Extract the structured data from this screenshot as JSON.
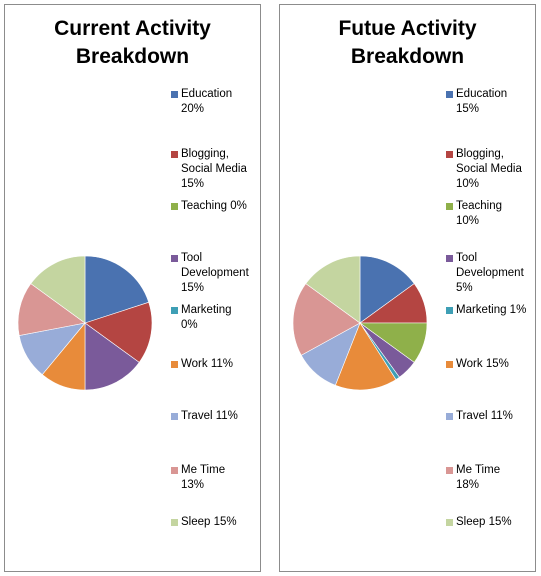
{
  "colors": {
    "education": "#4a72b0",
    "blogging": "#b44542",
    "teaching": "#8fb04a",
    "tool_dev": "#7a5a9a",
    "marketing": "#3e9fb5",
    "work": "#e88b3a",
    "travel": "#98acd8",
    "me_time": "#d99694",
    "sleep": "#c4d5a0"
  },
  "chart_data": [
    {
      "type": "pie",
      "title_lines": [
        "Current Activity",
        "Breakdown"
      ],
      "slices": [
        {
          "key": "education",
          "legend_lines": [
            "Education",
            "20%"
          ],
          "value": 20
        },
        {
          "key": "blogging",
          "legend_lines": [
            "Blogging,",
            "Social Media",
            "15%"
          ],
          "value": 15
        },
        {
          "key": "teaching",
          "legend_lines": [
            "Teaching  0%"
          ],
          "value": 0
        },
        {
          "key": "tool_dev",
          "legend_lines": [
            "Tool",
            "Development",
            "15%"
          ],
          "value": 15
        },
        {
          "key": "marketing",
          "legend_lines": [
            "Marketing",
            "0%"
          ],
          "value": 0
        },
        {
          "key": "work",
          "legend_lines": [
            "Work 11%"
          ],
          "value": 11
        },
        {
          "key": "travel",
          "legend_lines": [
            "Travel 11%"
          ],
          "value": 11
        },
        {
          "key": "me_time",
          "legend_lines": [
            "Me Time",
            "13%"
          ],
          "value": 13
        },
        {
          "key": "sleep",
          "legend_lines": [
            "Sleep  15%"
          ],
          "value": 15
        }
      ]
    },
    {
      "type": "pie",
      "title_lines": [
        "Futue Activity",
        "Breakdown"
      ],
      "slices": [
        {
          "key": "education",
          "legend_lines": [
            "Education",
            "15%"
          ],
          "value": 15
        },
        {
          "key": "blogging",
          "legend_lines": [
            "Blogging,",
            "Social Media",
            "10%"
          ],
          "value": 10
        },
        {
          "key": "teaching",
          "legend_lines": [
            "Teaching",
            "10%"
          ],
          "value": 10
        },
        {
          "key": "tool_dev",
          "legend_lines": [
            "Tool",
            "Development",
            "5%"
          ],
          "value": 5
        },
        {
          "key": "marketing",
          "legend_lines": [
            "Marketing 1%"
          ],
          "value": 1
        },
        {
          "key": "work",
          "legend_lines": [
            "Work  15%"
          ],
          "value": 15
        },
        {
          "key": "travel",
          "legend_lines": [
            "Travel 11%"
          ],
          "value": 11
        },
        {
          "key": "me_time",
          "legend_lines": [
            "Me Time",
            "18%"
          ],
          "value": 18
        },
        {
          "key": "sleep",
          "legend_lines": [
            "Sleep  15%"
          ],
          "value": 15
        }
      ]
    }
  ]
}
